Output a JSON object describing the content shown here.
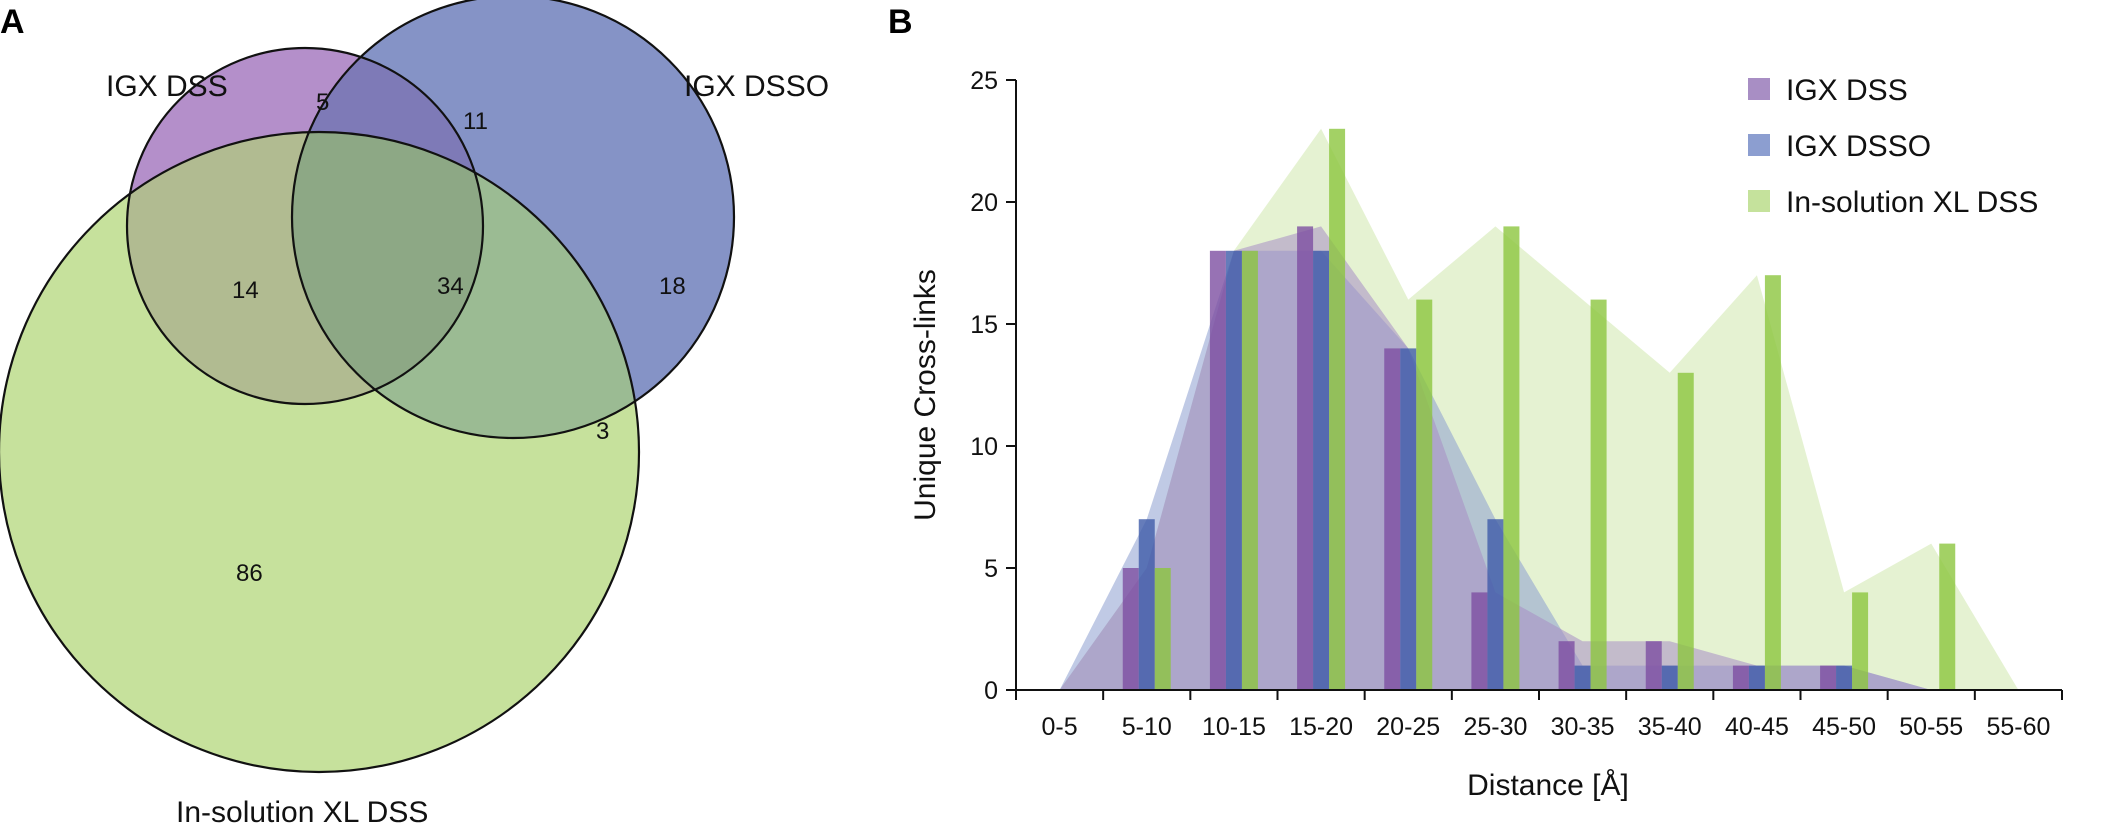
{
  "panel_a": {
    "label": "A",
    "sets": [
      {
        "name": "IGX DSS",
        "color": "#b48fca"
      },
      {
        "name": "IGX DSSO",
        "color": "#8593c6"
      },
      {
        "name": "In-solution XL DSS",
        "color": "#c6e19c"
      }
    ],
    "regions": {
      "dss_only": "5",
      "dss_dsso": "11",
      "dsso_only": "18",
      "dss_insol": "14",
      "all_three": "34",
      "dsso_insol": "3",
      "insol_only": "86"
    }
  },
  "panel_b": {
    "label": "B"
  },
  "chart_data": {
    "type": "bar",
    "title": "",
    "xlabel": "Distance [Å]",
    "ylabel": "Unique Cross-links",
    "ylim": [
      0,
      25
    ],
    "yticks": [
      "0",
      "5",
      "10",
      "15",
      "20",
      "25"
    ],
    "legend_position": "top-right",
    "categories": [
      "0-5",
      "5-10",
      "10-15",
      "15-20",
      "20-25",
      "25-30",
      "30-35",
      "35-40",
      "40-45",
      "45-50",
      "50-55",
      "55-60"
    ],
    "series": [
      {
        "name": "IGX DSS",
        "color": "#7d4fa1",
        "area_color": "#a88ec4",
        "values": [
          0,
          5,
          18,
          19,
          14,
          4,
          2,
          2,
          1,
          1,
          0,
          0
        ]
      },
      {
        "name": "IGX DSSO",
        "color": "#3f5ba9",
        "area_color": "#8c9ed0",
        "values": [
          0,
          7,
          18,
          18,
          14,
          7,
          1,
          1,
          1,
          1,
          0,
          0
        ]
      },
      {
        "name": "In-solution XL DSS",
        "color": "#8cc63f",
        "area_color": "#c5e29c",
        "values": [
          0,
          5,
          18,
          23,
          16,
          19,
          16,
          13,
          17,
          4,
          6,
          0
        ]
      }
    ]
  }
}
